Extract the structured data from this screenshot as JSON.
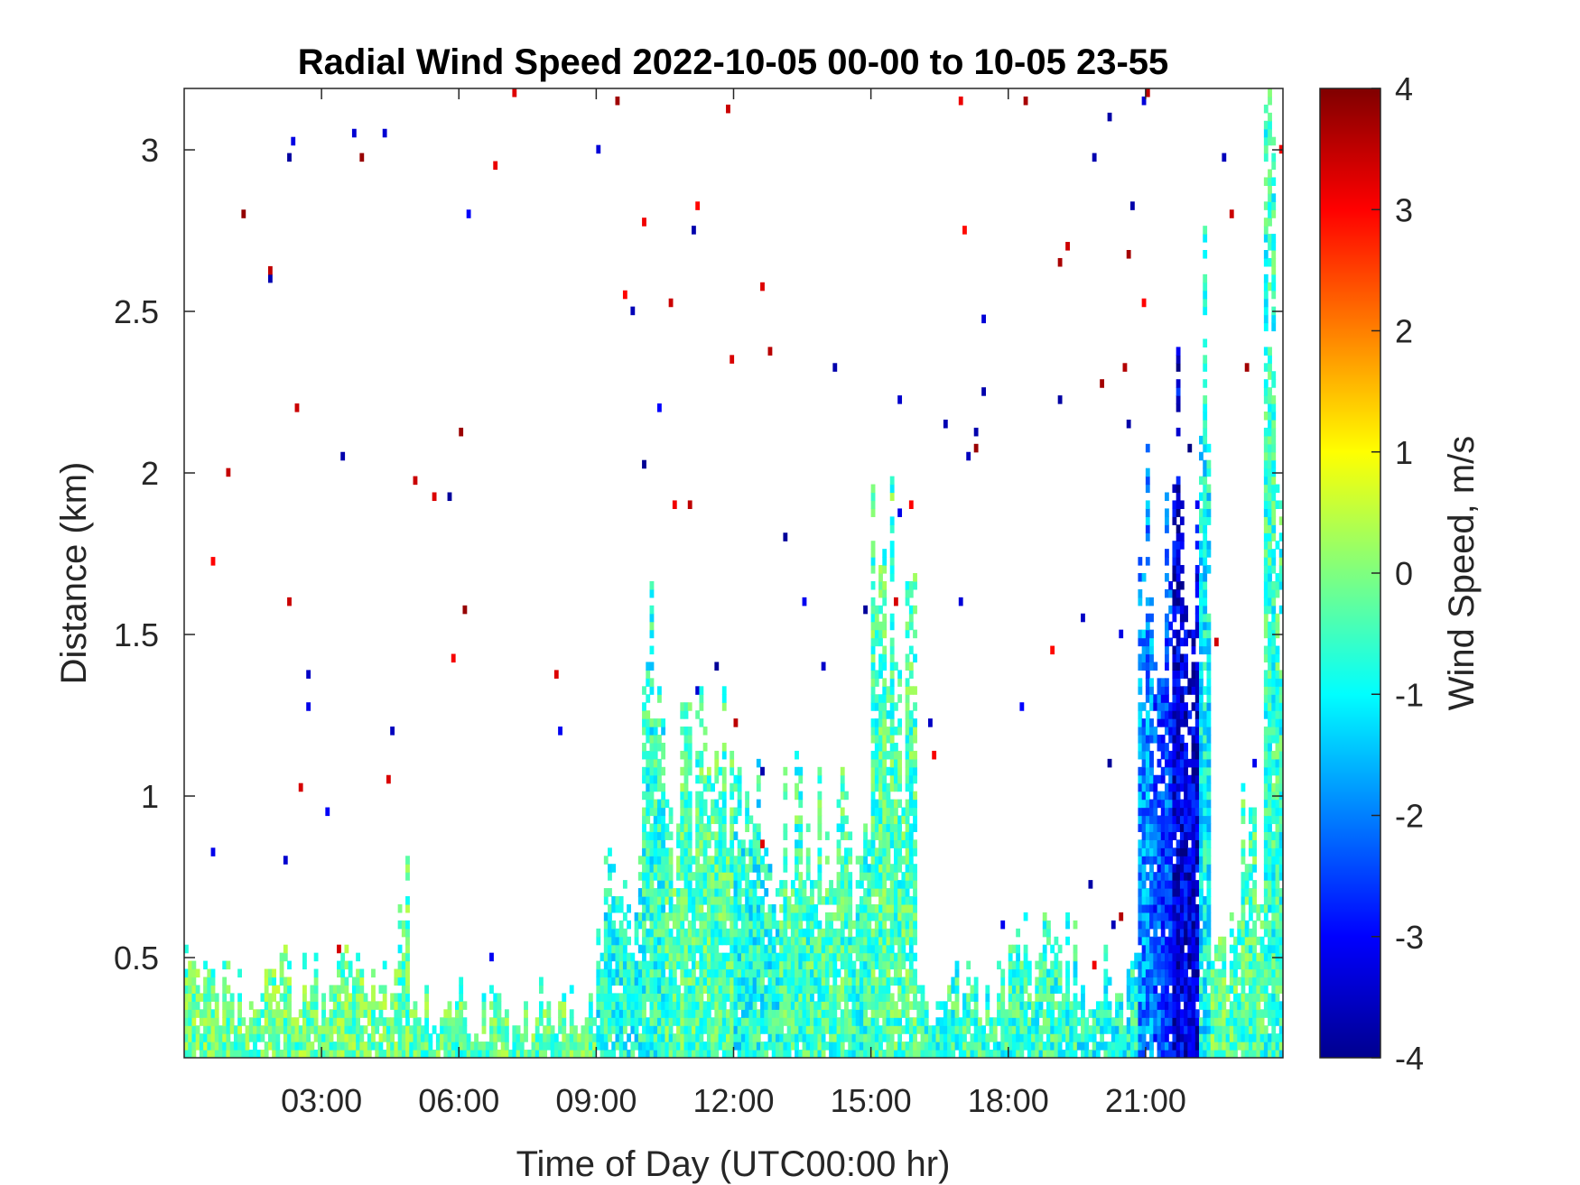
{
  "chart_data": {
    "type": "heatmap",
    "title": "Radial Wind Speed 2022-10-05 00-00 to 10-05 23-55",
    "xlabel": "Time of Day (UTC00:00 hr)",
    "ylabel": "Distance (km)",
    "colorbar_label": "Wind Speed, m/s",
    "x_unit": "hours",
    "xlim": [
      0,
      24
    ],
    "ylim": [
      0.19,
      3.19
    ],
    "clim": [
      -4,
      4
    ],
    "colormap": "jet",
    "x_ticks": [
      {
        "value": 3,
        "label": "03:00"
      },
      {
        "value": 6,
        "label": "06:00"
      },
      {
        "value": 9,
        "label": "09:00"
      },
      {
        "value": 12,
        "label": "12:00"
      },
      {
        "value": 15,
        "label": "15:00"
      },
      {
        "value": 18,
        "label": "18:00"
      },
      {
        "value": 21,
        "label": "21:00"
      }
    ],
    "y_ticks": [
      {
        "value": 0.5,
        "label": "0.5"
      },
      {
        "value": 1,
        "label": "1"
      },
      {
        "value": 1.5,
        "label": "1.5"
      },
      {
        "value": 2,
        "label": "2"
      },
      {
        "value": 2.5,
        "label": "2.5"
      },
      {
        "value": 3,
        "label": "3"
      }
    ],
    "colorbar_ticks": [
      {
        "value": 4,
        "label": "4"
      },
      {
        "value": 3,
        "label": "3"
      },
      {
        "value": 2,
        "label": "2"
      },
      {
        "value": 1,
        "label": "1"
      },
      {
        "value": 0,
        "label": "0"
      },
      {
        "value": -1,
        "label": "-1"
      },
      {
        "value": -2,
        "label": "-2"
      },
      {
        "value": -3,
        "label": "-3"
      },
      {
        "value": -4,
        "label": "-4"
      }
    ],
    "regions": [
      {
        "t0": 0.0,
        "t1": 4.7,
        "h": 0.5,
        "mean": -0.2
      },
      {
        "t0": 4.7,
        "t1": 4.9,
        "h": 1.0,
        "mean": -0.3
      },
      {
        "t0": 4.9,
        "t1": 9.0,
        "h": 0.4,
        "mean": -0.3
      },
      {
        "t0": 9.0,
        "t1": 10.0,
        "h": 0.8,
        "mean": -0.8
      },
      {
        "t0": 10.0,
        "t1": 10.5,
        "h": 1.6,
        "mean": -0.7
      },
      {
        "t0": 10.5,
        "t1": 12.0,
        "h": 1.25,
        "mean": -0.4
      },
      {
        "t0": 12.0,
        "t1": 13.0,
        "h": 1.1,
        "mean": -0.8
      },
      {
        "t0": 13.0,
        "t1": 14.5,
        "h": 1.05,
        "mean": -0.5
      },
      {
        "t0": 14.5,
        "t1": 15.0,
        "h": 0.9,
        "mean": -0.6
      },
      {
        "t0": 15.0,
        "t1": 15.5,
        "h": 2.0,
        "mean": -0.4
      },
      {
        "t0": 15.5,
        "t1": 16.0,
        "h": 1.6,
        "mean": -0.4
      },
      {
        "t0": 16.0,
        "t1": 18.0,
        "h": 0.45,
        "mean": -0.6
      },
      {
        "t0": 18.0,
        "t1": 19.5,
        "h": 0.6,
        "mean": -0.6
      },
      {
        "t0": 19.5,
        "t1": 20.8,
        "h": 0.5,
        "mean": -0.8
      },
      {
        "t0": 20.8,
        "t1": 21.2,
        "h": 2.0,
        "mean": -1.9
      },
      {
        "t0": 21.2,
        "t1": 21.6,
        "h": 1.9,
        "mean": -2.4
      },
      {
        "t0": 21.6,
        "t1": 22.2,
        "h": 2.2,
        "mean": -3.3
      },
      {
        "t0": 22.2,
        "t1": 22.4,
        "h": 2.6,
        "mean": -1.0
      },
      {
        "t0": 22.4,
        "t1": 23.0,
        "h": 0.6,
        "mean": -0.3
      },
      {
        "t0": 23.0,
        "t1": 23.6,
        "h": 1.0,
        "mean": -0.4
      },
      {
        "t0": 23.6,
        "t1": 24.0,
        "h": 3.1,
        "mean": -0.6
      }
    ]
  }
}
